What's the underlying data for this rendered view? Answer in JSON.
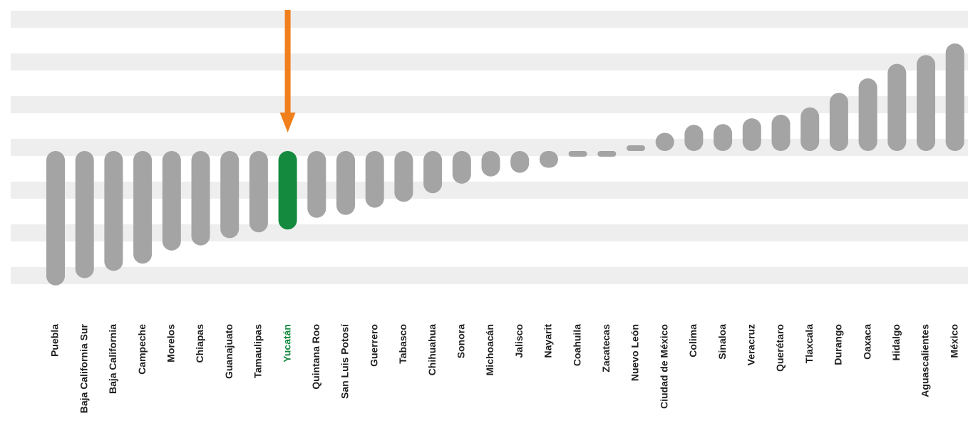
{
  "chart_data": {
    "type": "bar",
    "categories": [
      "Puebla",
      "Baja California Sur",
      "Baja California",
      "Campeche",
      "Morelos",
      "Chiapas",
      "Guanajuato",
      "Tamaulipas",
      "Yucatán",
      "Quintana Roo",
      "San Luis Potosí",
      "Guerrero",
      "Tabasco",
      "Chihuahua",
      "Sonora",
      "Michoacán",
      "Jalisco",
      "Nayarit",
      "Coahuila",
      "Zacatecas",
      "Nuevo León",
      "Ciudad de México",
      "Colima",
      "Sinaloa",
      "Veracruz",
      "Querétaro",
      "Tlaxcala",
      "Durango",
      "Oaxaca",
      "Hidalgo",
      "Aguascalientes",
      "México"
    ],
    "values": [
      -18.5,
      -17.5,
      -16.5,
      -15.5,
      -13.7,
      -13.0,
      -12.0,
      -11.2,
      -10.8,
      -9.2,
      -8.8,
      -7.8,
      -7.0,
      -5.8,
      -4.5,
      -3.5,
      -3.0,
      -2.3,
      -0.5,
      -0.3,
      0.4,
      2.5,
      3.6,
      3.7,
      4.5,
      5.0,
      6.0,
      8.0,
      10.0,
      12.0,
      13.2,
      14.8
    ],
    "highlight": "Yucatán",
    "highlight_color": "#138a3e",
    "bar_color": "#a4a4a4",
    "band_color": "#eeeeee",
    "arrow_color": "#f07f1c",
    "ylim": [
      -20,
      15
    ],
    "title": "",
    "xlabel": "",
    "ylabel": ""
  }
}
